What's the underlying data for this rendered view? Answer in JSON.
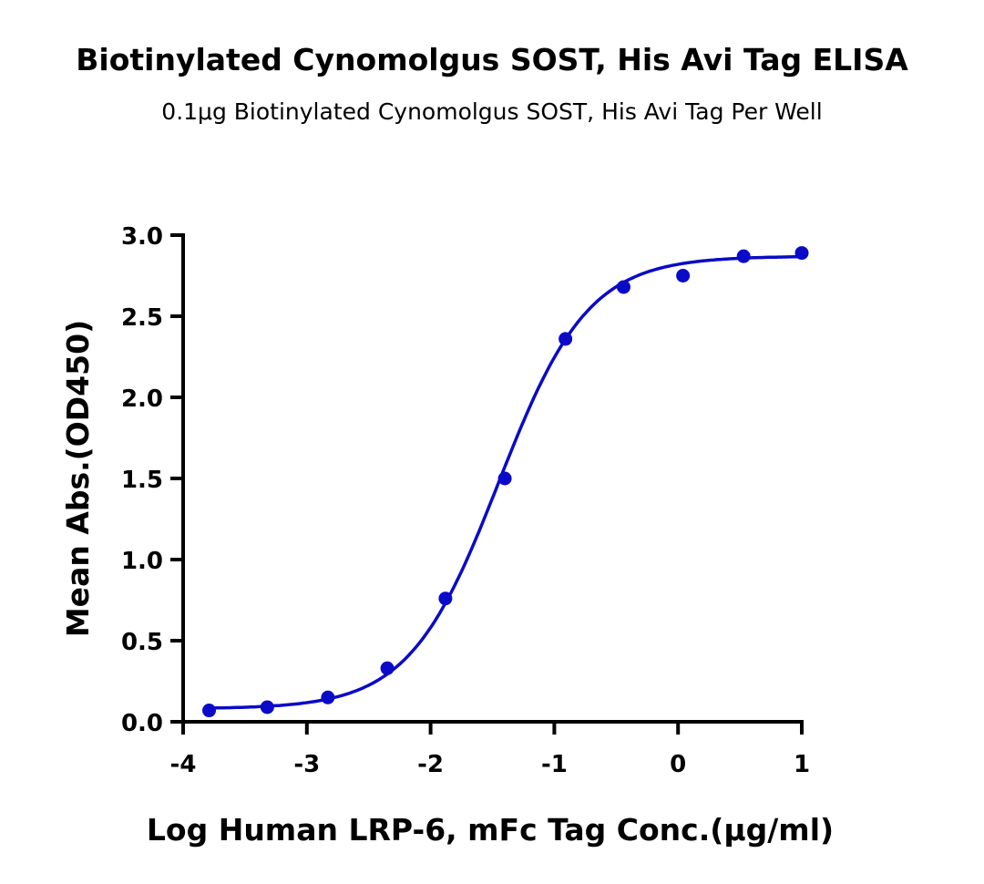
{
  "chart_data": {
    "type": "scatter",
    "title": "Biotinylated Cynomolgus SOST, His Avi Tag ELISA",
    "subtitle": "0.1μg Biotinylated Cynomolgus SOST, His Avi Tag Per Well",
    "xlabel": "Log Human LRP-6, mFc Tag Conc.(μg/ml)",
    "ylabel": "Mean Abs.(OD450)",
    "xlim": [
      -4,
      1
    ],
    "ylim": [
      0,
      3.0
    ],
    "xticks": [
      "-4",
      "-3",
      "-2",
      "-1",
      "0",
      "1"
    ],
    "yticks": [
      "0.0",
      "0.5",
      "1.0",
      "1.5",
      "2.0",
      "2.5",
      "3.0"
    ],
    "grid": false,
    "color": "#0a0ac8",
    "points": {
      "x": [
        -3.79,
        -3.32,
        -2.83,
        -2.35,
        -1.88,
        -1.4,
        -0.91,
        -0.44,
        0.04,
        0.53,
        1.0
      ],
      "y": [
        0.07,
        0.09,
        0.15,
        0.33,
        0.76,
        1.5,
        2.36,
        2.68,
        2.75,
        2.87,
        2.89
      ]
    },
    "fit": {
      "model": "4PL",
      "bottom": 0.08,
      "top": 2.87,
      "logEC50": -1.45,
      "hill": 1.2
    }
  }
}
